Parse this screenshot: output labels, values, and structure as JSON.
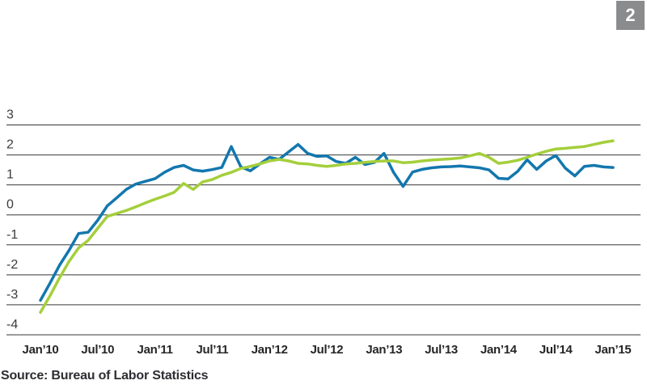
{
  "badge": {
    "label": "2",
    "bg": "#8a8b8d",
    "text_color": "#ffffff"
  },
  "chart_data": {
    "type": "line",
    "title": "",
    "xlabel": "",
    "ylabel": "",
    "x_tick_labels": [
      "Jan’10",
      "Jul’10",
      "Jan’11",
      "Jul’11",
      "Jan’12",
      "Jul’12",
      "Jan’13",
      "Jul’13",
      "Jan’14",
      "Jul’14",
      "Jan’15"
    ],
    "y_ticks": [
      3,
      2,
      1,
      0,
      -1,
      -2,
      -3,
      -4
    ],
    "ylim": [
      -4,
      3
    ],
    "grid": "horizontal",
    "legend": "none",
    "x_unit": "monthly, Jan 2010 - Jan 2015",
    "colors": {
      "grid": "#383838"
    },
    "series": [
      {
        "name": "blue-series",
        "color": "#1377ae",
        "values": [
          -2.85,
          -2.28,
          -1.68,
          -1.18,
          -0.62,
          -0.58,
          -0.18,
          0.3,
          0.57,
          0.85,
          1.03,
          1.12,
          1.21,
          1.42,
          1.58,
          1.65,
          1.5,
          1.46,
          1.51,
          1.58,
          2.28,
          1.6,
          1.47,
          1.7,
          1.92,
          1.85,
          2.1,
          2.35,
          2.05,
          1.95,
          1.97,
          1.78,
          1.72,
          1.92,
          1.68,
          1.75,
          2.05,
          1.42,
          0.95,
          1.43,
          1.52,
          1.57,
          1.6,
          1.61,
          1.63,
          1.6,
          1.57,
          1.5,
          1.22,
          1.2,
          1.45,
          1.84,
          1.52,
          1.8,
          1.98,
          1.56,
          1.3,
          1.62,
          1.65,
          1.6,
          1.58
        ]
      },
      {
        "name": "green-series",
        "color": "#a4cf3b",
        "values": [
          -3.25,
          -2.7,
          -2.1,
          -1.55,
          -1.1,
          -0.85,
          -0.45,
          -0.05,
          0.05,
          0.15,
          0.27,
          0.4,
          0.52,
          0.63,
          0.75,
          1.05,
          0.85,
          1.1,
          1.18,
          1.32,
          1.42,
          1.55,
          1.62,
          1.7,
          1.8,
          1.85,
          1.8,
          1.72,
          1.7,
          1.65,
          1.62,
          1.65,
          1.7,
          1.72,
          1.75,
          1.78,
          1.8,
          1.8,
          1.74,
          1.76,
          1.8,
          1.83,
          1.85,
          1.87,
          1.9,
          1.97,
          2.05,
          1.92,
          1.72,
          1.76,
          1.82,
          1.92,
          2.03,
          2.12,
          2.2,
          2.22,
          2.25,
          2.28,
          2.35,
          2.42,
          2.47
        ]
      }
    ],
    "source": "Source: Bureau of Labor Statistics"
  }
}
